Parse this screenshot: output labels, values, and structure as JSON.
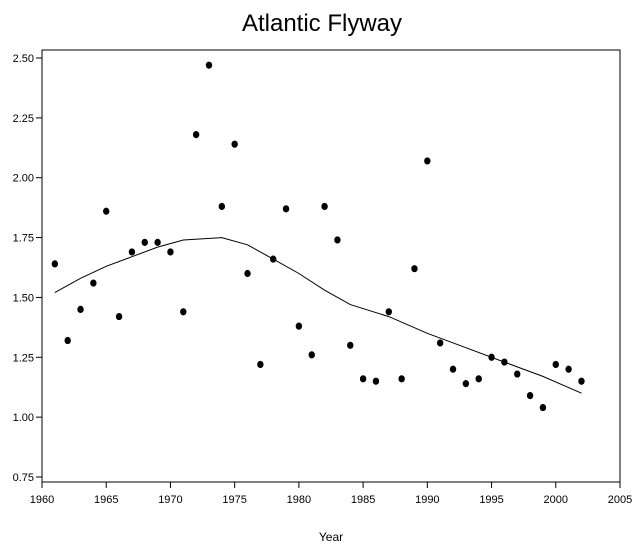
{
  "chart_data": {
    "type": "scatter",
    "title": "Atlantic Flyway",
    "xlabel": "Year",
    "ylabel": "",
    "xlim": [
      1960,
      2005
    ],
    "ylim": [
      0.75,
      2.5
    ],
    "xticks": [
      "1960",
      "1965",
      "1970",
      "1975",
      "1980",
      "1985",
      "1990",
      "1995",
      "2000",
      "2005"
    ],
    "yticks": [
      "0.75",
      "1.00",
      "1.25",
      "1.50",
      "1.75",
      "2.00",
      "2.25",
      "2.50"
    ],
    "grid": false,
    "legend": "none",
    "series": [
      {
        "kind": "points",
        "x": [
          1961,
          1962,
          1963,
          1964,
          1965,
          1966,
          1967,
          1968,
          1969,
          1970,
          1971,
          1972,
          1973,
          1974,
          1975,
          1976,
          1977,
          1978,
          1979,
          1980,
          1981,
          1982,
          1983,
          1984,
          1985,
          1986,
          1987,
          1988,
          1989,
          1990,
          1991,
          1992,
          1993,
          1994,
          1995,
          1996,
          1997,
          1998,
          1999,
          2000,
          2001,
          2002
        ],
        "y": [
          1.64,
          1.32,
          1.45,
          1.56,
          1.86,
          1.42,
          1.69,
          1.73,
          1.73,
          1.69,
          1.44,
          2.18,
          2.47,
          1.88,
          2.14,
          1.6,
          1.22,
          1.66,
          1.87,
          1.38,
          1.26,
          1.88,
          1.74,
          1.3,
          1.16,
          1.15,
          1.44,
          1.16,
          1.62,
          2.07,
          1.31,
          1.2,
          1.14,
          1.16,
          1.25,
          1.23,
          1.18,
          1.09,
          1.04,
          1.22,
          1.2,
          1.15
        ]
      },
      {
        "kind": "smooth-line",
        "x": [
          1961,
          1963,
          1965,
          1967,
          1969,
          1971,
          1974,
          1976,
          1978,
          1980,
          1982,
          1984,
          1987,
          1990,
          1993,
          1996,
          1999,
          2002
        ],
        "y": [
          1.52,
          1.58,
          1.63,
          1.67,
          1.71,
          1.74,
          1.75,
          1.72,
          1.66,
          1.6,
          1.53,
          1.47,
          1.42,
          1.35,
          1.29,
          1.23,
          1.17,
          1.1
        ]
      }
    ]
  }
}
